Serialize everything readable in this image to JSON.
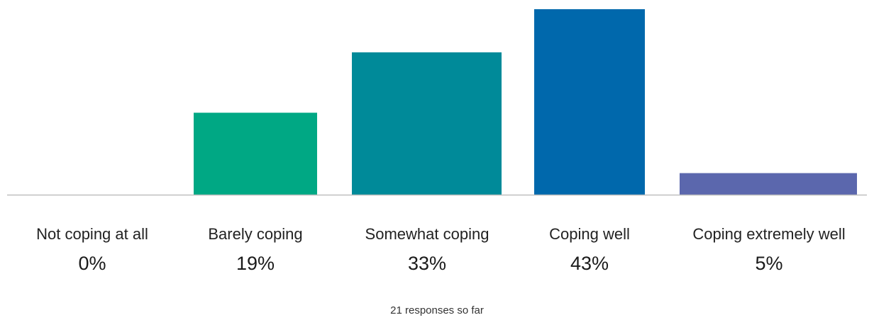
{
  "chart_data": {
    "type": "bar",
    "categories": [
      "Not coping at all",
      "Barely coping",
      "Somewhat coping",
      "Coping well",
      "Coping extremely well"
    ],
    "values": [
      0,
      19,
      33,
      43,
      5
    ],
    "value_labels": [
      "0%",
      "19%",
      "33%",
      "43%",
      "5%"
    ],
    "unit": "%",
    "colors": [
      "#00a884",
      "#00a884",
      "#008a99",
      "#0068ac",
      "#5b67ad"
    ],
    "ylim": [
      0,
      43
    ],
    "grid": false,
    "legend": "none",
    "axis_line_color": "#bfbfbf"
  },
  "footer": {
    "responses_text": "21 responses so far"
  }
}
